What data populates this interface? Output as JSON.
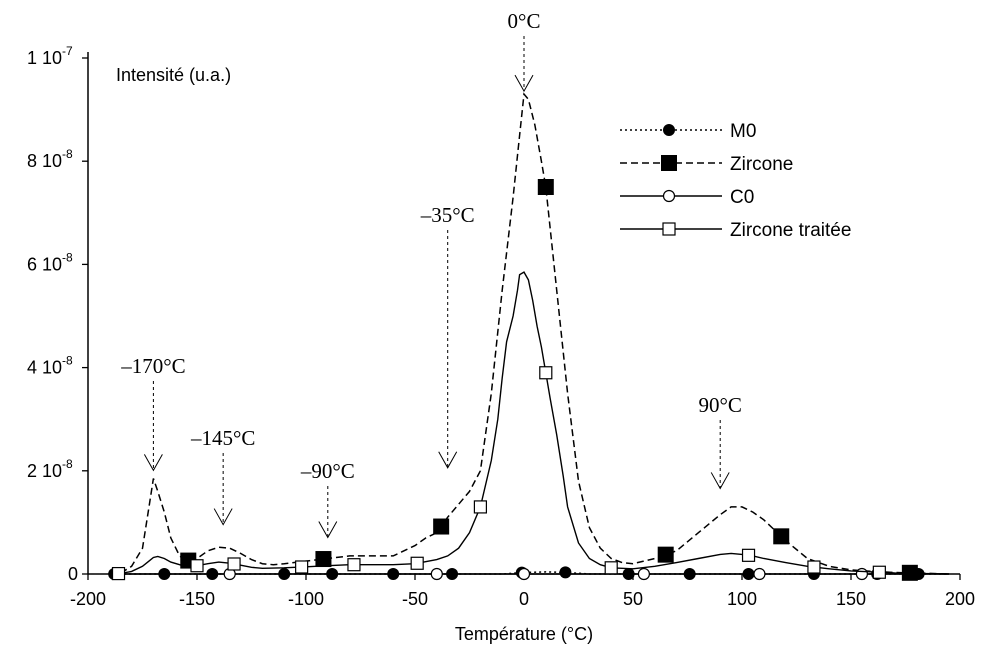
{
  "chart_data": {
    "type": "line",
    "ylabel": "Intensité (u.a.)",
    "xlabel": "Température (°C)",
    "xlim": [
      -200,
      200
    ],
    "ylim": [
      0,
      1e-07
    ],
    "x_ticks": [
      -200,
      -150,
      -100,
      -50,
      0,
      50,
      100,
      150,
      200
    ],
    "x_tick_labels": [
      "-200",
      "-150",
      "-100",
      "-50",
      "0",
      "50",
      "100",
      "150",
      "200"
    ],
    "y_ticks": [
      {
        "value": 0,
        "mantissa": "0",
        "exponent": ""
      },
      {
        "value": 2e-08,
        "mantissa": "2 10",
        "exponent": "-8"
      },
      {
        "value": 4e-08,
        "mantissa": "4 10",
        "exponent": "-8"
      },
      {
        "value": 6e-08,
        "mantissa": "6 10",
        "exponent": "-8"
      },
      {
        "value": 8e-08,
        "mantissa": "8 10",
        "exponent": "-8"
      },
      {
        "value": 1e-07,
        "mantissa": "1 10",
        "exponent": "-7"
      }
    ],
    "grid": false,
    "legend_position": "top-right",
    "series": [
      {
        "name": "M0",
        "style": "dotted",
        "marker": "filled-circle",
        "x": [
          -188,
          -170,
          -150,
          -130,
          -110,
          -90,
          -70,
          -50,
          -40,
          -30,
          -20,
          -10,
          0,
          10,
          20,
          30,
          40,
          50,
          60,
          80,
          100,
          120,
          140,
          160,
          180,
          195
        ],
        "y": [
          0,
          0,
          0,
          0,
          0,
          0,
          0,
          0,
          0,
          0,
          0,
          0,
          3e-10,
          4e-10,
          3e-10,
          0,
          0,
          0,
          0,
          0,
          0,
          0,
          0,
          0,
          0,
          0
        ],
        "marker_x": [
          -188,
          -165,
          -143,
          -110,
          -88,
          -60,
          -33,
          -1,
          19,
          48,
          76,
          103,
          133,
          162,
          181
        ]
      },
      {
        "name": "Zircone",
        "style": "dashed",
        "marker": "filled-square",
        "x": [
          -190,
          -185,
          -180,
          -175,
          -172,
          -170,
          -168,
          -165,
          -162,
          -158,
          -155,
          -150,
          -145,
          -140,
          -135,
          -130,
          -125,
          -120,
          -115,
          -110,
          -100,
          -90,
          -80,
          -70,
          -60,
          -50,
          -45,
          -40,
          -35,
          -30,
          -25,
          -20,
          -15,
          -10,
          -5,
          -2,
          0,
          2,
          5,
          8,
          10,
          15,
          20,
          25,
          30,
          35,
          40,
          45,
          50,
          60,
          70,
          80,
          90,
          95,
          100,
          105,
          110,
          120,
          130,
          140,
          150,
          160,
          170,
          180,
          195
        ],
        "y": [
          0,
          2e-10,
          1.5e-09,
          5e-09,
          1.3e-08,
          1.85e-08,
          1.6e-08,
          1.2e-08,
          7e-09,
          3.5e-09,
          2.5e-09,
          3e-09,
          4.5e-09,
          5.2e-09,
          5e-09,
          4e-09,
          2.8e-09,
          2e-09,
          1.8e-09,
          2e-09,
          2.5e-09,
          3e-09,
          3.5e-09,
          3.5e-09,
          3.5e-09,
          5.5e-09,
          7e-09,
          8e-09,
          1.1e-08,
          1.35e-08,
          1.6e-08,
          2e-08,
          3.5e-08,
          5.5e-08,
          7.3e-08,
          8.5e-08,
          9.3e-08,
          9.2e-08,
          8.7e-08,
          8e-08,
          7.5e-08,
          5.5e-08,
          3.5e-08,
          1.8e-08,
          9e-09,
          5e-09,
          3e-09,
          2.2e-09,
          2e-09,
          3e-09,
          4.5e-09,
          8e-09,
          1.15e-08,
          1.3e-08,
          1.3e-08,
          1.2e-08,
          1.05e-08,
          6.5e-09,
          3e-09,
          1.5e-09,
          8e-10,
          5e-10,
          3e-10,
          2e-10,
          0
        ],
        "marker_x": [
          -154,
          -92,
          -38,
          10,
          65,
          118,
          177
        ]
      },
      {
        "name": "C0",
        "style": "solid",
        "marker": "open-circle",
        "x": [
          -188,
          -170,
          -150,
          -130,
          -110,
          -90,
          -70,
          -50,
          -30,
          -10,
          10,
          30,
          50,
          70,
          90,
          110,
          130,
          150,
          170,
          195
        ],
        "y": [
          0,
          0,
          0,
          0,
          0,
          0,
          0,
          0,
          0,
          0,
          0,
          0,
          0,
          0,
          0,
          0,
          0,
          0,
          0,
          0
        ],
        "marker_x": [
          -135,
          -40,
          0,
          55,
          108,
          155
        ]
      },
      {
        "name": "Zircone traitée",
        "style": "solid",
        "marker": "open-square",
        "x": [
          -190,
          -185,
          -180,
          -175,
          -172,
          -170,
          -168,
          -165,
          -162,
          -158,
          -155,
          -150,
          -145,
          -140,
          -135,
          -130,
          -125,
          -120,
          -110,
          -100,
          -90,
          -80,
          -70,
          -60,
          -50,
          -40,
          -35,
          -30,
          -25,
          -20,
          -15,
          -12,
          -10,
          -8,
          -5,
          -3,
          -2,
          0,
          2,
          4,
          6,
          8,
          10,
          12,
          15,
          18,
          20,
          25,
          30,
          35,
          40,
          50,
          60,
          70,
          80,
          90,
          95,
          100,
          105,
          110,
          120,
          130,
          140,
          150,
          160,
          170,
          180,
          195
        ],
        "y": [
          0,
          1e-10,
          5e-10,
          1.5e-09,
          2.5e-09,
          3.2e-09,
          3.4e-09,
          3e-09,
          2.3e-09,
          1.8e-09,
          1.5e-09,
          1.6e-09,
          2e-09,
          2.3e-09,
          2.1e-09,
          1.7e-09,
          1.3e-09,
          1.1e-09,
          1.2e-09,
          1.4e-09,
          1.6e-09,
          1.8e-09,
          1.8e-09,
          1.8e-09,
          2e-09,
          2.8e-09,
          3.5e-09,
          5e-09,
          8e-09,
          1.3e-08,
          2.2e-08,
          3e-08,
          3.8e-08,
          4.5e-08,
          5e-08,
          5.5e-08,
          5.8e-08,
          5.85e-08,
          5.7e-08,
          5.3e-08,
          4.8e-08,
          4.4e-08,
          3.9e-08,
          3.4e-08,
          2.7e-08,
          1.9e-08,
          1.3e-08,
          6e-09,
          3e-09,
          1.8e-09,
          1.2e-09,
          1e-09,
          1.5e-09,
          2.2e-09,
          3e-09,
          3.8e-09,
          4e-09,
          3.8e-09,
          3.5e-09,
          3e-09,
          2.2e-09,
          1.5e-09,
          1e-09,
          6e-10,
          4e-10,
          2e-10,
          1e-10,
          0
        ],
        "marker_x": [
          -186,
          -150,
          -133,
          -102,
          -78,
          -49,
          -20,
          10,
          40,
          103,
          133,
          163
        ]
      }
    ],
    "annotations": [
      {
        "text": "0°C",
        "x": 0,
        "y_tip": 9.3e-08
      },
      {
        "text": "–35°C",
        "x": -35,
        "y_tip": 2e-08
      },
      {
        "text": "–170°C",
        "x": -170,
        "y_tip": 1.95e-08
      },
      {
        "text": "–145°C",
        "x": -138,
        "y_tip": 9e-09
      },
      {
        "text": "–90°C",
        "x": -90,
        "y_tip": 6.5e-09
      },
      {
        "text": "90°C",
        "x": 90,
        "y_tip": 1.6e-08
      }
    ]
  }
}
